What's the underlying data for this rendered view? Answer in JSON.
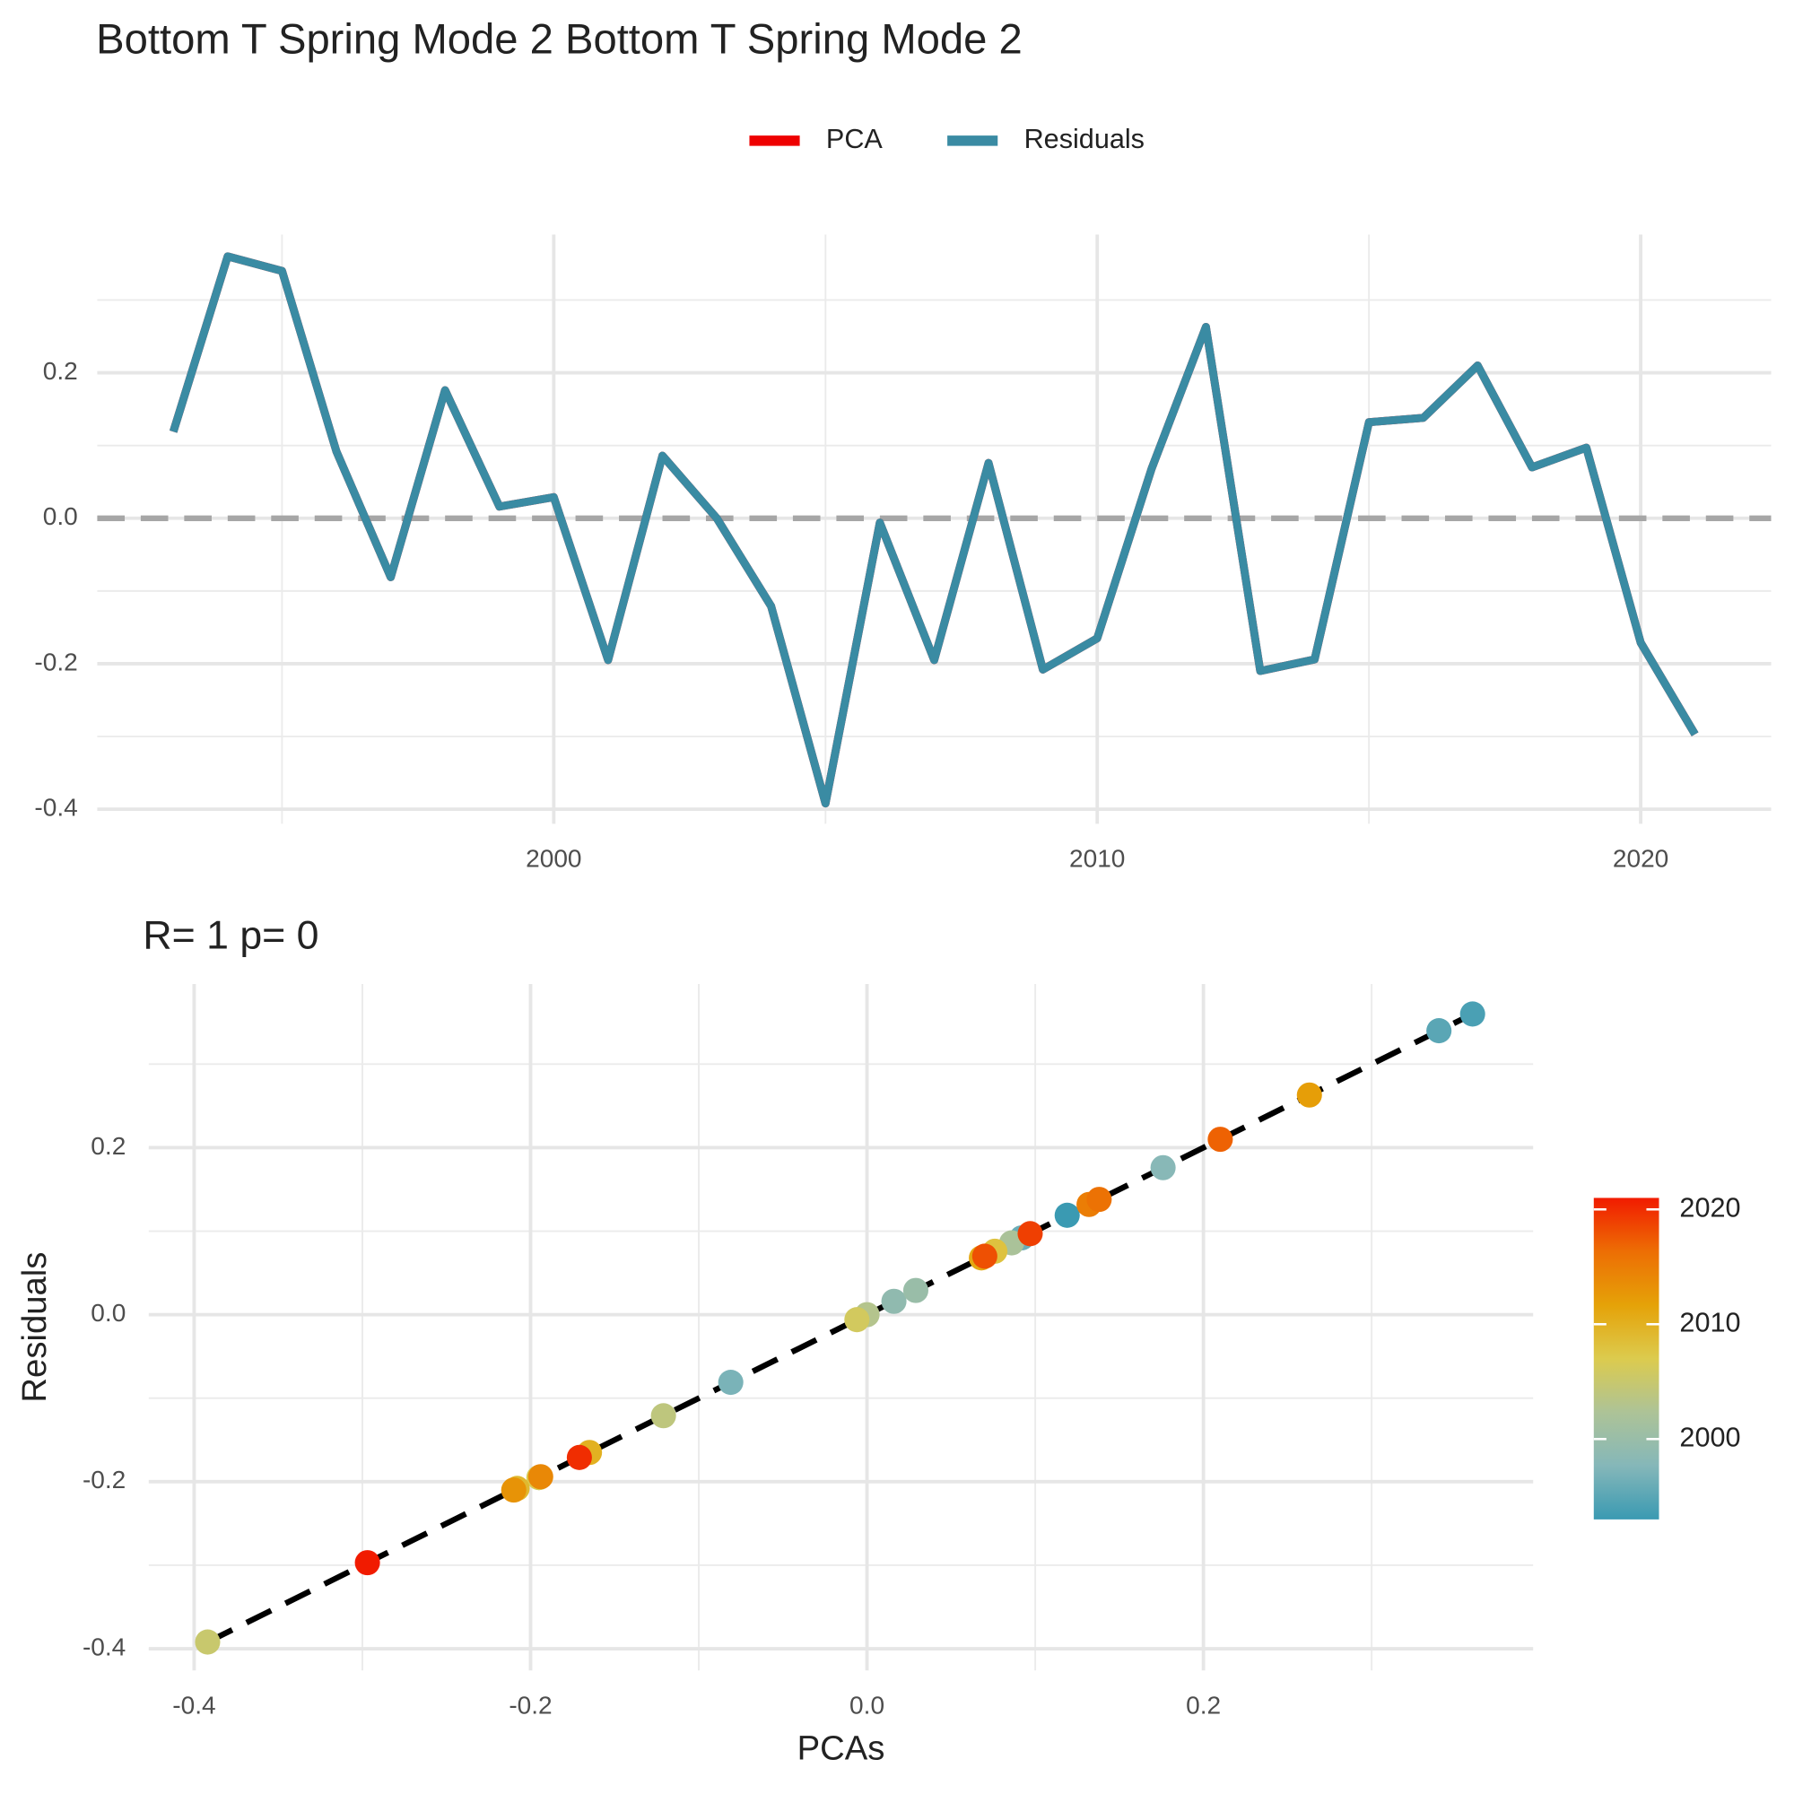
{
  "chart_data": [
    {
      "type": "line",
      "title": "Bottom T Spring Mode 2 Bottom T Spring Mode 2",
      "x": [
        1993,
        1994,
        1995,
        1996,
        1997,
        1998,
        1999,
        2000,
        2001,
        2002,
        2003,
        2004,
        2005,
        2006,
        2007,
        2008,
        2009,
        2010,
        2011,
        2012,
        2013,
        2014,
        2015,
        2016,
        2017,
        2018,
        2019,
        2020,
        2021
      ],
      "series": [
        {
          "name": "PCA",
          "color": "#ee0000",
          "values": [
            0.119,
            0.36,
            0.34,
            0.092,
            -0.081,
            0.176,
            0.016,
            0.029,
            -0.195,
            0.086,
            0.0,
            -0.121,
            -0.392,
            -0.006,
            -0.195,
            0.076,
            -0.208,
            -0.165,
            0.068,
            0.263,
            -0.21,
            -0.194,
            0.132,
            0.138,
            0.21,
            0.07,
            0.097,
            -0.171,
            -0.297
          ]
        },
        {
          "name": "Residuals",
          "color": "#3a8ba3",
          "values": [
            0.119,
            0.36,
            0.34,
            0.092,
            -0.081,
            0.176,
            0.016,
            0.029,
            -0.195,
            0.086,
            0.0,
            -0.121,
            -0.392,
            -0.006,
            -0.195,
            0.076,
            -0.208,
            -0.165,
            0.068,
            0.263,
            -0.21,
            -0.194,
            0.132,
            0.138,
            0.21,
            0.07,
            0.097,
            -0.171,
            -0.297
          ]
        }
      ],
      "xlim": [
        1991.6,
        2022.4
      ],
      "xticks": [
        2000,
        2010,
        2020
      ],
      "ylim": [
        -0.42,
        0.39
      ],
      "yticks": [
        -0.4,
        -0.2,
        {
          "value": 0,
          "label": "0.0"
        },
        0.2
      ],
      "reference_line": 0,
      "grid": true,
      "legend": "top"
    },
    {
      "type": "scatter",
      "title": "R= 1  p= 0",
      "x_label": "PCAs",
      "y_label": "Residuals",
      "x": [
        0.119,
        0.36,
        0.34,
        0.092,
        -0.081,
        0.176,
        0.016,
        0.029,
        -0.195,
        0.086,
        0.0,
        -0.121,
        -0.392,
        -0.006,
        -0.195,
        0.076,
        -0.208,
        -0.165,
        0.068,
        0.263,
        -0.21,
        -0.194,
        0.132,
        0.138,
        0.21,
        0.07,
        0.097,
        -0.171,
        -0.297
      ],
      "y": [
        0.119,
        0.36,
        0.34,
        0.092,
        -0.081,
        0.176,
        0.016,
        0.029,
        -0.195,
        0.086,
        0.0,
        -0.121,
        -0.392,
        -0.006,
        -0.195,
        0.076,
        -0.208,
        -0.165,
        0.068,
        0.263,
        -0.21,
        -0.194,
        0.132,
        0.138,
        0.21,
        0.07,
        0.097,
        -0.171,
        -0.297
      ],
      "color_values": [
        1993,
        1994,
        1995,
        1996,
        1997,
        1998,
        1999,
        2000,
        2001,
        2002,
        2003,
        2004,
        2005,
        2006,
        2007,
        2008,
        2009,
        2010,
        2011,
        2012,
        2013,
        2014,
        2015,
        2016,
        2017,
        2018,
        2019,
        2020,
        2021
      ],
      "colors": [
        "#3a9ab2",
        "#85b7b9",
        "#adc397",
        "#dccb4e",
        "#e5a208",
        "#ed6e04",
        "#f11b00"
      ],
      "colorbar_lim": [
        1993,
        2021
      ],
      "colorbar_ticks": [
        2000,
        2010,
        2020
      ],
      "xlim": [
        -0.427,
        0.396
      ],
      "xticks": [
        -0.4,
        -0.2,
        {
          "value": 0,
          "label": "0.0"
        },
        0.2
      ],
      "ylim": [
        -0.426,
        0.396
      ],
      "yticks": [
        -0.4,
        -0.2,
        {
          "value": 0,
          "label": "0.0"
        },
        0.2
      ],
      "fit_line": true,
      "grid": true
    }
  ]
}
